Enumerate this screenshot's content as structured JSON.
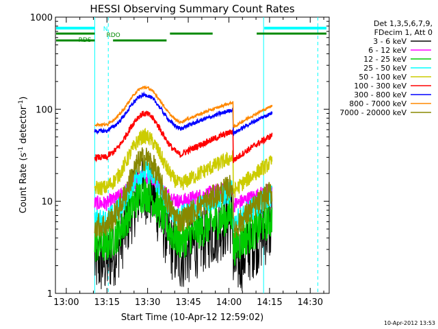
{
  "chart_data": {
    "type": "line",
    "title": "HESSI Observing Summary Count Rates",
    "xlabel": "Start Time (10-Apr-12 12:59:02)",
    "ylabel_main": "Count Rate (s",
    "ylabel_sup1": "-1",
    "ylabel_mid": " detector",
    "ylabel_sup2": "-1",
    "ylabel_end": ")",
    "yscale": "log",
    "ylim": [
      1,
      1000
    ],
    "xlim_minutes": [
      -3,
      98
    ],
    "x_ticks": [
      {
        "m": 1,
        "label": "13:00"
      },
      {
        "m": 16,
        "label": "13:15"
      },
      {
        "m": 31,
        "label": "13:30"
      },
      {
        "m": 46,
        "label": "13:45"
      },
      {
        "m": 61,
        "label": "14:00"
      },
      {
        "m": 76,
        "label": "14:15"
      },
      {
        "m": 91,
        "label": "14:30"
      }
    ],
    "y_ticks": [
      {
        "v": 1,
        "label": "1"
      },
      {
        "v": 10,
        "label": "10"
      },
      {
        "v": 100,
        "label": "100"
      },
      {
        "v": 1000,
        "label": "1000"
      }
    ],
    "legend_header": [
      "Det 1,3,5,6,7,9,",
      "FDecim 1, Att 0"
    ],
    "series": [
      {
        "name": "3 - 6 keV",
        "color": "#000000",
        "level": 2.2,
        "noise": 0.55,
        "peak": 2.8
      },
      {
        "name": "6 - 12 keV",
        "color": "#ff00ff",
        "level": 9.5,
        "noise": 0.12,
        "peak": 1.0
      },
      {
        "name": "12 - 25 keV",
        "color": "#00cc00",
        "level": 3.4,
        "noise": 0.3,
        "peak": 2.0
      },
      {
        "name": "25 - 50 keV",
        "color": "#00ffff",
        "level": 6.2,
        "noise": 0.18,
        "peak": 1.9
      },
      {
        "name": "50 - 100 keV",
        "color": "#cccc00",
        "level": 14,
        "noise": 0.12,
        "peak": 2.0
      },
      {
        "name": "100 - 300 keV",
        "color": "#ff0000",
        "level": 30,
        "noise": 0.05,
        "peak": 1.7
      },
      {
        "name": "300 - 800 keV",
        "color": "#0000ff",
        "level": 58,
        "noise": 0.03,
        "peak": 1.4
      },
      {
        "name": "800 - 7000 keV",
        "color": "#ff8800",
        "level": 68,
        "noise": 0.02,
        "peak": 1.45
      },
      {
        "name": "7000 - 20000 keV",
        "color": "#888800",
        "level": 5.5,
        "noise": 0.2,
        "peak": 2.6
      }
    ],
    "segments": [
      {
        "start": 11.5,
        "end": 16.5,
        "factor": 1.25
      },
      {
        "start": 16.5,
        "end": 43.5,
        "factor": 1.0
      },
      {
        "start": 43.5,
        "end": 62.5,
        "factor": 1.0
      },
      {
        "start": 62.5,
        "end": 77.0,
        "factor": 1.0
      }
    ],
    "vlines": [
      {
        "m": 11.5,
        "style": "solid"
      },
      {
        "m": 16.5,
        "style": "dashed"
      },
      {
        "m": 73.8,
        "style": "solid"
      },
      {
        "m": 93.8,
        "style": "dashed"
      }
    ],
    "annotations": [
      {
        "text": "N",
        "color": "#00ffff"
      },
      {
        "text": "RDO",
        "color": "#008800"
      },
      {
        "text": "RDS",
        "color": "#008800"
      }
    ],
    "grid": false,
    "legend_position": "right"
  },
  "footer": {
    "timestamp": "10-Apr-2012 13:53"
  },
  "colors": {
    "axes": "#000000",
    "vline": "#00ffff",
    "rdo": "#008800"
  }
}
